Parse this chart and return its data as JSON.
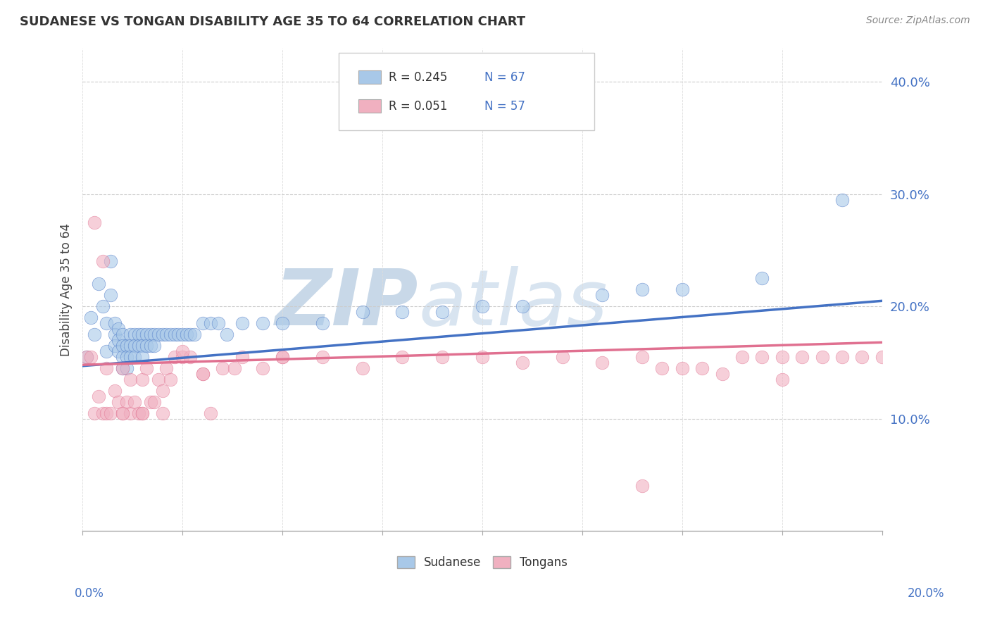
{
  "title": "SUDANESE VS TONGAN DISABILITY AGE 35 TO 64 CORRELATION CHART",
  "source_text": "Source: ZipAtlas.com",
  "ylabel": "Disability Age 35 to 64",
  "xlim": [
    0.0,
    0.2
  ],
  "ylim": [
    0.0,
    0.43
  ],
  "yticks": [
    0.1,
    0.2,
    0.3,
    0.4
  ],
  "ytick_labels": [
    "10.0%",
    "20.0%",
    "30.0%",
    "40.0%"
  ],
  "sudanese_R": "0.245",
  "sudanese_N": "67",
  "tongan_R": "0.051",
  "tongan_N": "57",
  "blue_color": "#a8c8e8",
  "pink_color": "#f0b0c0",
  "blue_line_color": "#4472c4",
  "pink_line_color": "#e07090",
  "axis_color": "#4472c4",
  "watermark_color": "#c8d8e8",
  "watermark_zip": "ZIP",
  "watermark_atlas": "atlas",
  "sudanese_x": [
    0.001,
    0.002,
    0.003,
    0.004,
    0.005,
    0.006,
    0.006,
    0.007,
    0.007,
    0.008,
    0.008,
    0.008,
    0.009,
    0.009,
    0.009,
    0.01,
    0.01,
    0.01,
    0.01,
    0.011,
    0.011,
    0.011,
    0.012,
    0.012,
    0.012,
    0.013,
    0.013,
    0.013,
    0.014,
    0.014,
    0.015,
    0.015,
    0.015,
    0.016,
    0.016,
    0.017,
    0.017,
    0.018,
    0.018,
    0.019,
    0.02,
    0.021,
    0.022,
    0.023,
    0.024,
    0.025,
    0.026,
    0.027,
    0.028,
    0.03,
    0.032,
    0.034,
    0.036,
    0.04,
    0.045,
    0.05,
    0.06,
    0.07,
    0.08,
    0.09,
    0.1,
    0.11,
    0.13,
    0.14,
    0.15,
    0.17,
    0.19
  ],
  "sudanese_y": [
    0.155,
    0.19,
    0.175,
    0.22,
    0.2,
    0.185,
    0.16,
    0.24,
    0.21,
    0.185,
    0.175,
    0.165,
    0.18,
    0.17,
    0.16,
    0.175,
    0.165,
    0.155,
    0.145,
    0.165,
    0.155,
    0.145,
    0.175,
    0.165,
    0.155,
    0.175,
    0.165,
    0.155,
    0.175,
    0.165,
    0.175,
    0.165,
    0.155,
    0.175,
    0.165,
    0.175,
    0.165,
    0.175,
    0.165,
    0.175,
    0.175,
    0.175,
    0.175,
    0.175,
    0.175,
    0.175,
    0.175,
    0.175,
    0.175,
    0.185,
    0.185,
    0.185,
    0.175,
    0.185,
    0.185,
    0.185,
    0.185,
    0.195,
    0.195,
    0.195,
    0.2,
    0.2,
    0.21,
    0.215,
    0.215,
    0.225,
    0.295
  ],
  "tongan_x": [
    0.001,
    0.002,
    0.003,
    0.004,
    0.005,
    0.006,
    0.006,
    0.007,
    0.008,
    0.009,
    0.01,
    0.01,
    0.011,
    0.012,
    0.012,
    0.013,
    0.014,
    0.015,
    0.015,
    0.016,
    0.017,
    0.018,
    0.019,
    0.02,
    0.021,
    0.022,
    0.023,
    0.025,
    0.027,
    0.03,
    0.032,
    0.035,
    0.038,
    0.04,
    0.045,
    0.05,
    0.06,
    0.07,
    0.08,
    0.09,
    0.1,
    0.11,
    0.12,
    0.13,
    0.14,
    0.145,
    0.15,
    0.155,
    0.16,
    0.165,
    0.17,
    0.175,
    0.18,
    0.185,
    0.19,
    0.195,
    0.2
  ],
  "tongan_y": [
    0.155,
    0.155,
    0.105,
    0.12,
    0.105,
    0.105,
    0.145,
    0.105,
    0.125,
    0.115,
    0.105,
    0.145,
    0.115,
    0.105,
    0.135,
    0.115,
    0.105,
    0.105,
    0.135,
    0.145,
    0.115,
    0.115,
    0.135,
    0.125,
    0.145,
    0.135,
    0.155,
    0.155,
    0.155,
    0.14,
    0.105,
    0.145,
    0.145,
    0.155,
    0.145,
    0.155,
    0.155,
    0.145,
    0.155,
    0.155,
    0.155,
    0.15,
    0.155,
    0.15,
    0.155,
    0.145,
    0.145,
    0.145,
    0.14,
    0.155,
    0.155,
    0.155,
    0.155,
    0.155,
    0.155,
    0.155,
    0.155
  ],
  "extra_tongan_x": [
    0.003,
    0.005,
    0.01,
    0.015,
    0.02,
    0.025,
    0.03,
    0.05,
    0.14,
    0.175
  ],
  "extra_tongan_y": [
    0.275,
    0.24,
    0.105,
    0.105,
    0.105,
    0.16,
    0.14,
    0.155,
    0.04,
    0.135
  ]
}
